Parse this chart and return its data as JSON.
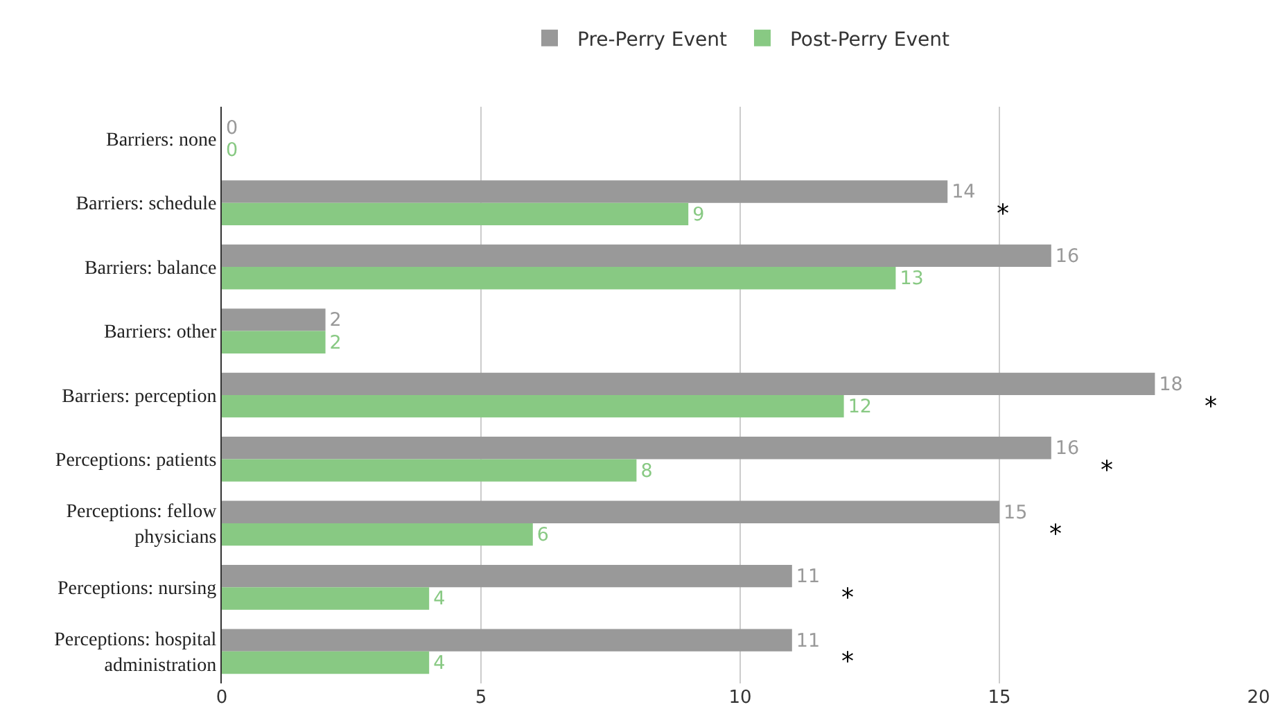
{
  "chart_data": {
    "type": "bar",
    "orientation": "horizontal",
    "categories": [
      "Barriers: none",
      "Barriers: schedule",
      "Barriers: balance",
      "Barriers: other",
      "Barriers: perception",
      "Perceptions: patients",
      "Perceptions: fellow physicians",
      "Perceptions: nursing",
      "Perceptions: hospital administration"
    ],
    "series": [
      {
        "name": "Pre-Perry Event",
        "color": "#999999",
        "values": [
          0,
          14,
          16,
          2,
          18,
          16,
          15,
          11,
          11
        ]
      },
      {
        "name": "Post-Perry Event",
        "color": "#88c983",
        "values": [
          0,
          9,
          13,
          2,
          12,
          8,
          6,
          4,
          4
        ]
      }
    ],
    "xlim": [
      0,
      20
    ],
    "xticks": [
      0,
      5,
      10,
      15,
      20
    ],
    "grid": "x",
    "legend": "top",
    "data_labels": true,
    "annotations": [
      {
        "text": "*",
        "x": 14,
        "y": "Barriers: schedule"
      },
      {
        "text": "*",
        "x": 18,
        "y": "Barriers: perception"
      },
      {
        "text": "*",
        "x": 16,
        "y": "Perceptions: patients"
      },
      {
        "text": "*",
        "x": 15,
        "y": "Perceptions: fellow physicians"
      },
      {
        "text": "*",
        "x": 11,
        "y": "Perceptions: nursing"
      },
      {
        "text": "*",
        "x": 11,
        "y": "Perceptions: hospital administration"
      }
    ]
  }
}
